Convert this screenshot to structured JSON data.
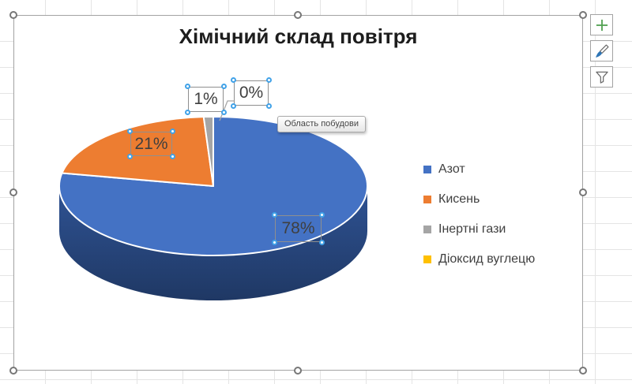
{
  "chart": {
    "title": "Хімічний склад повітря",
    "tooltip": "Область побудови"
  },
  "chart_data": {
    "type": "pie",
    "is_3d": true,
    "title": "Хімічний склад повітря",
    "start_angle_deg": 0,
    "direction": "clockwise",
    "legend_position": "right",
    "categories": [
      "Азот",
      "Кисень",
      "Інертні гази",
      "Діоксид вуглецю"
    ],
    "values": [
      78,
      21,
      1,
      0
    ],
    "data_labels": [
      "78%",
      "21%",
      "1%",
      "0%"
    ],
    "colors": [
      "#4472C4",
      "#ED7D31",
      "#A5A5A5",
      "#FFC000"
    ],
    "side_color_top": "#2F5394",
    "side_color_bottom": "#1F3864",
    "slice_border_color": "#FFFFFF"
  },
  "legend": {
    "items": [
      {
        "label": "Азот",
        "color": "#4472C4"
      },
      {
        "label": "Кисень",
        "color": "#ED7D31"
      },
      {
        "label": "Інертні гази",
        "color": "#A5A5A5"
      },
      {
        "label": "Діоксид вуглецю",
        "color": "#FFC000"
      }
    ]
  },
  "chart_tools": {
    "buttons": [
      {
        "name": "chart-elements-button",
        "icon": "plus-icon"
      },
      {
        "name": "chart-styles-button",
        "icon": "brush-icon"
      },
      {
        "name": "chart-filters-button",
        "icon": "funnel-icon"
      }
    ],
    "icon_colors": {
      "plus": "#53A253",
      "brush_tip": "#2E75B6",
      "outline": "#6A6A6A"
    }
  }
}
